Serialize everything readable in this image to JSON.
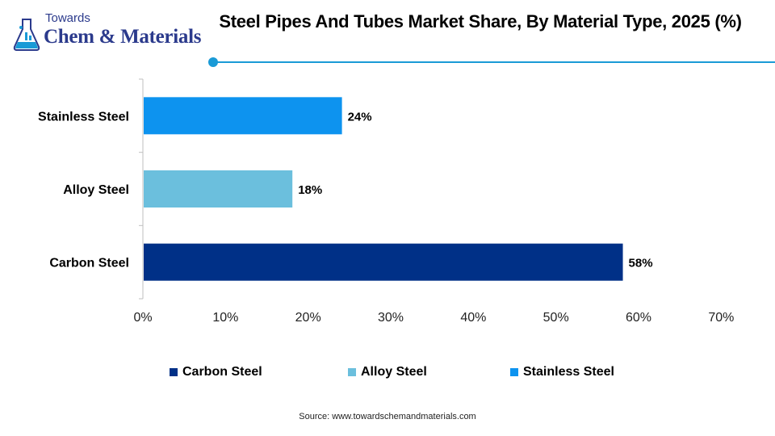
{
  "logo": {
    "line1": "Towards",
    "line2": "Chem & Materials",
    "icon": "flask-icon"
  },
  "title": "Steel Pipes And Tubes Market Share, By Material Type, 2025 (%)",
  "source": "Source:  www.towardschemandmaterials.com",
  "colors": {
    "accent": "#1a9ad6",
    "carbon_steel": "#003087",
    "alloy_steel": "#6bbfdd",
    "stainless_steel": "#0d93ef"
  },
  "chart_data": {
    "type": "bar",
    "orientation": "horizontal",
    "title": "Steel Pipes And Tubes Market Share, By Material Type, 2025 (%)",
    "categories": [
      "Stainless Steel",
      "Alloy Steel",
      "Carbon Steel"
    ],
    "values": [
      24,
      18,
      58
    ],
    "data_labels": [
      "24%",
      "18%",
      "58%"
    ],
    "bar_colors": [
      "#0d93ef",
      "#6bbfdd",
      "#003087"
    ],
    "xlim": [
      0,
      70
    ],
    "x_ticks": [
      0,
      10,
      20,
      30,
      40,
      50,
      60,
      70
    ],
    "x_tick_labels": [
      "0%",
      "10%",
      "20%",
      "30%",
      "40%",
      "50%",
      "60%",
      "70%"
    ],
    "grid": false,
    "legend_position": "bottom",
    "legend": [
      {
        "label": "Carbon Steel",
        "color": "#003087"
      },
      {
        "label": "Alloy Steel",
        "color": "#6bbfdd"
      },
      {
        "label": "Stainless Steel",
        "color": "#0d93ef"
      }
    ]
  }
}
